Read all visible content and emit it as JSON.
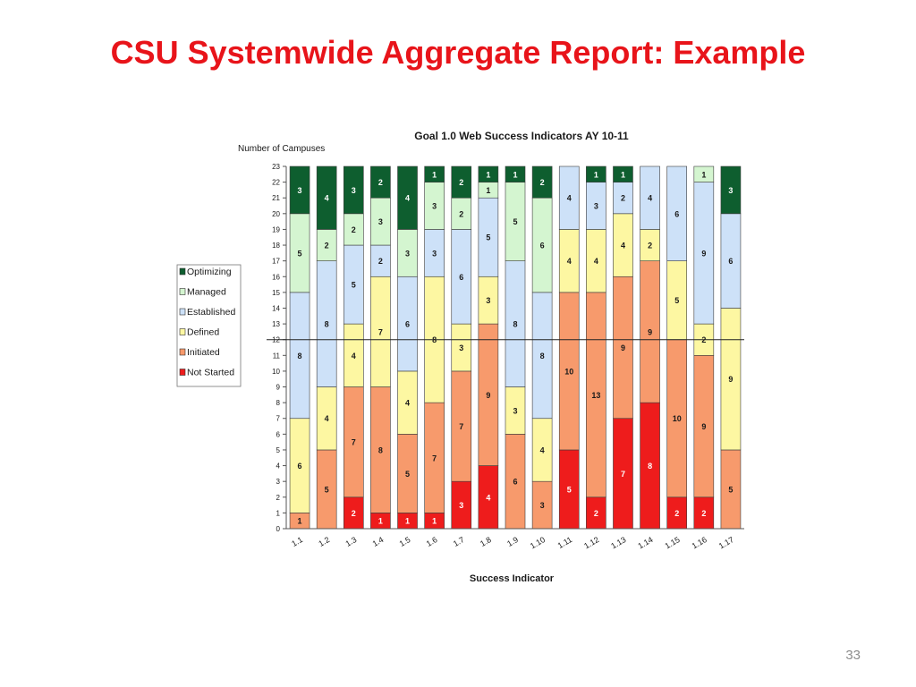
{
  "slide": {
    "title": "CSU Systemwide Aggregate Report: Example",
    "page_number": "33"
  },
  "chart_data": {
    "type": "bar",
    "stacked": true,
    "title": "Goal 1.0 Web Success Indicators AY 10-11",
    "xlabel": "Success Indicator",
    "ylabel": "Number of Campuses",
    "ylim": [
      0,
      23
    ],
    "yticks": [
      0,
      1,
      2,
      3,
      4,
      5,
      6,
      7,
      8,
      9,
      10,
      11,
      12,
      13,
      14,
      15,
      16,
      17,
      18,
      19,
      20,
      21,
      22,
      23
    ],
    "reference_line": 12,
    "grid": false,
    "legend_position": "left",
    "categories": [
      "1.1",
      "1.2",
      "1.3",
      "1.4",
      "1.5",
      "1.6",
      "1.7",
      "1.8",
      "1.9",
      "1.10",
      "1.11",
      "1.12",
      "1.13",
      "1.14",
      "1.15",
      "1.16",
      "1.17"
    ],
    "series": [
      {
        "name": "Not Started",
        "color": "#ee1c1c",
        "label_color": "#ffffff",
        "values": [
          0,
          0,
          2,
          1,
          1,
          1,
          3,
          4,
          0,
          0,
          5,
          2,
          7,
          8,
          2,
          2,
          0
        ]
      },
      {
        "name": "Initiated",
        "color": "#f79a6c",
        "label_color": "#1a1a1a",
        "values": [
          1,
          5,
          7,
          8,
          5,
          7,
          7,
          9,
          6,
          3,
          10,
          13,
          9,
          9,
          10,
          9,
          5
        ]
      },
      {
        "name": "Defined",
        "color": "#fdf7a2",
        "label_color": "#1a1a1a",
        "values": [
          6,
          4,
          4,
          7,
          4,
          8,
          3,
          3,
          3,
          4,
          4,
          4,
          4,
          2,
          5,
          2,
          9
        ]
      },
      {
        "name": "Established",
        "color": "#cde1f8",
        "label_color": "#1a1a1a",
        "values": [
          8,
          8,
          5,
          2,
          6,
          3,
          6,
          5,
          8,
          8,
          4,
          3,
          2,
          4,
          6,
          9,
          6
        ]
      },
      {
        "name": "Managed",
        "color": "#d4f5d0",
        "label_color": "#1a1a1a",
        "values": [
          5,
          2,
          2,
          3,
          3,
          3,
          2,
          1,
          5,
          6,
          0,
          0,
          0,
          0,
          0,
          1,
          0
        ]
      },
      {
        "name": "Optimizing",
        "color": "#0e5e2f",
        "label_color": "#ffffff",
        "values": [
          3,
          4,
          3,
          2,
          4,
          1,
          2,
          1,
          1,
          2,
          0,
          1,
          1,
          0,
          0,
          0,
          3
        ]
      }
    ]
  }
}
